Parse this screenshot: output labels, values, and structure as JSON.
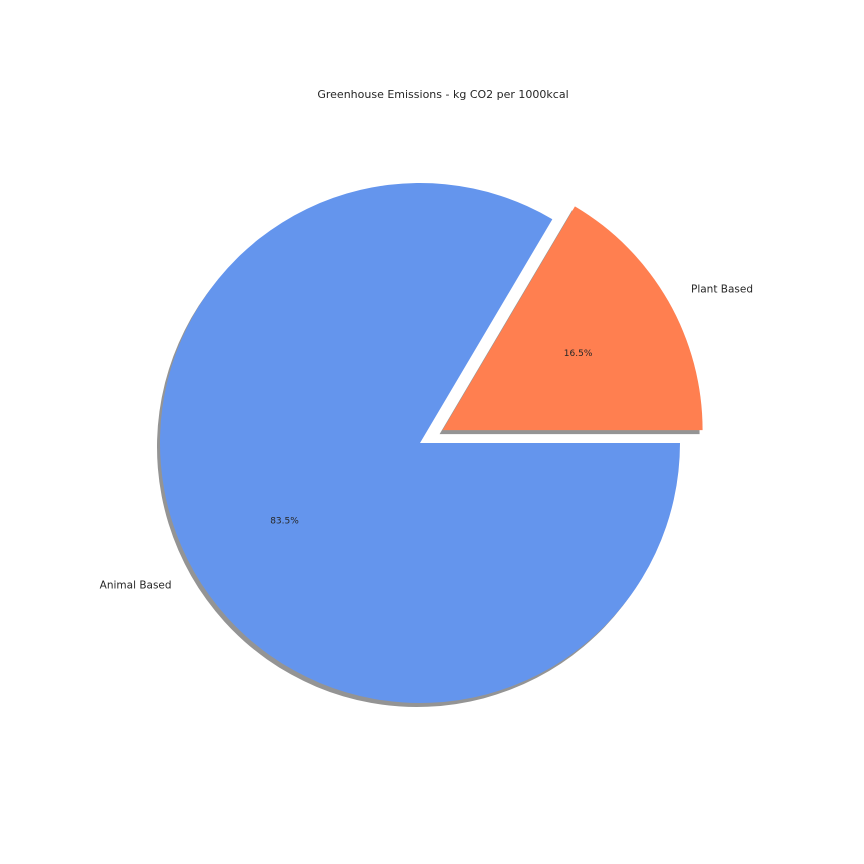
{
  "chart_data": {
    "type": "pie",
    "title": "Greenhouse Emissions - kg CO2 per 1000kcal",
    "slices": [
      {
        "label": "Plant Based",
        "value": 16.5,
        "pct_label": "16.5%",
        "color": "#ff7f50",
        "exploded": true
      },
      {
        "label": "Animal Based",
        "value": 83.5,
        "pct_label": "83.5%",
        "color": "#6495ed",
        "exploded": false
      }
    ],
    "start_angle_deg": 0,
    "direction": "counterclockwise",
    "shadow": true
  }
}
